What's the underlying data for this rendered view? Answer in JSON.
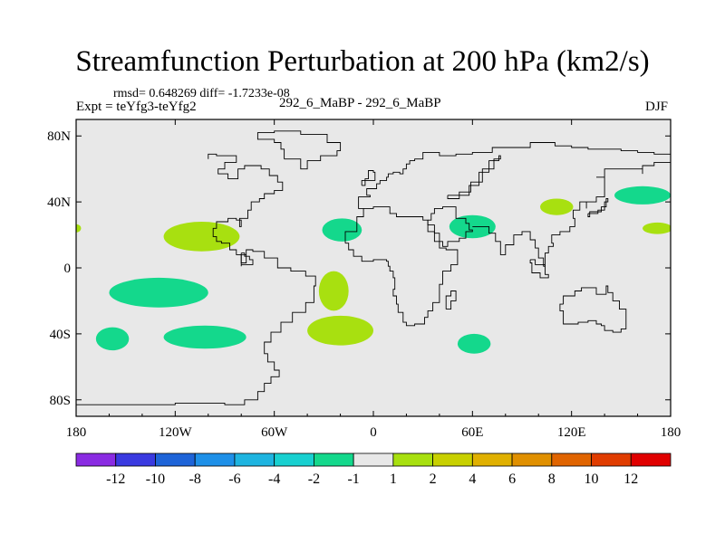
{
  "chart_data": {
    "type": "map",
    "title": "Streamfunction Perturbation at 200 hPa (km2/s)",
    "stats": "rmsd= 0.648269 diff= -1.7233e-08",
    "left_label": "Expt = teYfg3-teYfg2",
    "center_label": "292_6_MaBP - 292_6_MaBP",
    "right_label": "DJF",
    "xlim": [
      -180,
      180
    ],
    "ylim": [
      -90,
      90
    ],
    "x_ticks": [
      {
        "value": -180,
        "label": "180"
      },
      {
        "value": -120,
        "label": "120W"
      },
      {
        "value": -60,
        "label": "60W"
      },
      {
        "value": 0,
        "label": "0"
      },
      {
        "value": 60,
        "label": "60E"
      },
      {
        "value": 120,
        "label": "120E"
      },
      {
        "value": 180,
        "label": "180"
      }
    ],
    "y_ticks": [
      {
        "value": 80,
        "label": "80N"
      },
      {
        "value": 40,
        "label": "40N"
      },
      {
        "value": 0,
        "label": "0"
      },
      {
        "value": -40,
        "label": "40S"
      },
      {
        "value": -80,
        "label": "80S"
      }
    ],
    "colorbar": {
      "colors": [
        "#8a2be2",
        "#3a3ae0",
        "#1e64d8",
        "#1e90e8",
        "#1eb4e0",
        "#18d0d0",
        "#14d88c",
        "#e8e8e8",
        "#a8e010",
        "#c8d000",
        "#e0b000",
        "#e09000",
        "#e06400",
        "#e03c00",
        "#e00000"
      ],
      "labels": [
        "-12",
        "-10",
        "-8",
        "-6",
        "-4",
        "-2",
        "-1",
        "1",
        "2",
        "4",
        "6",
        "8",
        "10",
        "12"
      ]
    },
    "anomalies": [
      {
        "sign": "negative",
        "lon": -130,
        "lat": -15,
        "rx": 30,
        "ry": 9
      },
      {
        "sign": "negative",
        "lon": -158,
        "lat": -43,
        "rx": 10,
        "ry": 7
      },
      {
        "sign": "negative",
        "lon": -102,
        "lat": -42,
        "rx": 25,
        "ry": 7
      },
      {
        "sign": "negative",
        "lon": -19,
        "lat": 23,
        "rx": 12,
        "ry": 7
      },
      {
        "sign": "negative",
        "lon": 60,
        "lat": 25,
        "rx": 14,
        "ry": 7
      },
      {
        "sign": "negative",
        "lon": 61,
        "lat": -46,
        "rx": 10,
        "ry": 6
      },
      {
        "sign": "negative",
        "lon": 163,
        "lat": 44,
        "rx": 17,
        "ry": 5.5
      },
      {
        "sign": "positive",
        "lon": -104,
        "lat": 19,
        "rx": 23,
        "ry": 9
      },
      {
        "sign": "positive",
        "lon": -24,
        "lat": -14,
        "rx": 9,
        "ry": 12
      },
      {
        "sign": "positive",
        "lon": -20,
        "lat": -38,
        "rx": 20,
        "ry": 9
      },
      {
        "sign": "positive",
        "lon": 111,
        "lat": 37,
        "rx": 10,
        "ry": 5
      },
      {
        "sign": "positive",
        "lon": 172,
        "lat": 24,
        "rx": 9,
        "ry": 3.5
      },
      {
        "sign": "positive",
        "lon": -180,
        "lat": 24,
        "rx": 3,
        "ry": 2.5
      }
    ],
    "coastlines": [
      [
        [
          -180,
          -83
        ],
        [
          -158,
          -83
        ],
        [
          -120,
          -82
        ],
        [
          -90,
          -83
        ],
        [
          -78,
          -80
        ],
        [
          -70,
          -75
        ],
        [
          -66,
          -70
        ],
        [
          -62,
          -66
        ],
        [
          -57,
          -62
        ],
        [
          -60,
          -57
        ],
        [
          -64,
          -52
        ],
        [
          -66,
          -45
        ],
        [
          -62,
          -39
        ],
        [
          -56,
          -33
        ],
        [
          -49,
          -27
        ],
        [
          -41,
          -21
        ],
        [
          -36,
          -11
        ],
        [
          -35,
          -5
        ],
        [
          -41,
          -2
        ],
        [
          -50,
          0
        ],
        [
          -58,
          6
        ],
        [
          -66,
          10
        ],
        [
          -73,
          11
        ],
        [
          -77,
          8
        ],
        [
          -80,
          3
        ],
        [
          -77,
          8
        ],
        [
          -83,
          11
        ],
        [
          -87,
          15
        ],
        [
          -92,
          16
        ],
        [
          -95,
          19
        ],
        [
          -97,
          24
        ],
        [
          -95,
          28
        ],
        [
          -88,
          30
        ],
        [
          -83,
          29
        ],
        [
          -80,
          25
        ],
        [
          -81,
          30
        ],
        [
          -76,
          35
        ],
        [
          -74,
          40
        ],
        [
          -69,
          42
        ],
        [
          -66,
          45
        ],
        [
          -60,
          47
        ],
        [
          -55,
          52
        ],
        [
          -58,
          56
        ],
        [
          -63,
          60
        ],
        [
          -68,
          62
        ],
        [
          -78,
          60
        ],
        [
          -82,
          54
        ],
        [
          -88,
          57
        ],
        [
          -94,
          60
        ],
        [
          -90,
          64
        ],
        [
          -83,
          68
        ],
        [
          -95,
          69
        ],
        [
          -100,
          66
        ]
      ],
      [
        [
          -17,
          15
        ],
        [
          -17,
          22
        ],
        [
          -10,
          31
        ],
        [
          -6,
          36
        ],
        [
          -9,
          37
        ],
        [
          -9,
          43
        ],
        [
          -2,
          44
        ],
        [
          -4,
          48
        ],
        [
          2,
          51
        ],
        [
          4,
          53
        ],
        [
          8,
          55
        ],
        [
          9,
          57
        ],
        [
          12,
          58
        ],
        [
          16,
          57
        ],
        [
          18,
          60
        ],
        [
          20,
          63
        ],
        [
          22,
          65
        ],
        [
          25,
          66
        ],
        [
          30,
          70
        ],
        [
          40,
          68
        ],
        [
          50,
          69
        ],
        [
          60,
          70
        ],
        [
          72,
          73
        ],
        [
          80,
          73
        ],
        [
          95,
          76
        ],
        [
          110,
          74
        ],
        [
          120,
          73
        ],
        [
          130,
          72
        ],
        [
          140,
          72
        ],
        [
          150,
          71
        ],
        [
          160,
          70
        ],
        [
          170,
          69
        ],
        [
          180,
          68
        ]
      ],
      [
        [
          -17,
          15
        ],
        [
          -15,
          11
        ],
        [
          -12,
          7
        ],
        [
          -7,
          4
        ],
        [
          0,
          5
        ],
        [
          8,
          4
        ],
        [
          9,
          1
        ],
        [
          10,
          -2
        ],
        [
          12,
          -6
        ],
        [
          13,
          -13
        ],
        [
          12,
          -17
        ],
        [
          14,
          -22
        ],
        [
          15,
          -27
        ],
        [
          18,
          -33
        ],
        [
          20,
          -35
        ],
        [
          25,
          -34
        ],
        [
          31,
          -30
        ],
        [
          33,
          -26
        ],
        [
          36,
          -21
        ],
        [
          40,
          -15
        ],
        [
          40,
          -10
        ],
        [
          42,
          -2
        ],
        [
          47,
          2
        ],
        [
          51,
          11
        ],
        [
          44,
          12
        ],
        [
          40,
          16
        ],
        [
          37,
          22
        ],
        [
          33,
          29
        ],
        [
          30,
          31
        ],
        [
          25,
          31
        ],
        [
          20,
          31
        ],
        [
          14,
          33
        ],
        [
          10,
          37
        ],
        [
          0,
          36
        ],
        [
          -6,
          36
        ]
      ],
      [
        [
          45,
          44
        ],
        [
          52,
          46
        ],
        [
          59,
          52
        ],
        [
          66,
          60
        ],
        [
          73,
          66
        ],
        [
          77,
          68
        ],
        [
          76,
          65
        ],
        [
          70,
          58
        ],
        [
          64,
          50
        ],
        [
          58,
          44
        ],
        [
          52,
          42
        ],
        [
          45,
          44
        ]
      ],
      [
        [
          33,
          29
        ],
        [
          35,
          33
        ],
        [
          37,
          36
        ],
        [
          42,
          37
        ],
        [
          50,
          30
        ],
        [
          56,
          27
        ],
        [
          58,
          23
        ],
        [
          60,
          22
        ],
        [
          56,
          18
        ],
        [
          52,
          16
        ],
        [
          45,
          13
        ],
        [
          42,
          16
        ],
        [
          40,
          21
        ],
        [
          37,
          26
        ],
        [
          33,
          29
        ]
      ],
      [
        [
          60,
          25
        ],
        [
          66,
          25
        ],
        [
          70,
          21
        ],
        [
          74,
          16
        ],
        [
          77,
          8
        ],
        [
          80,
          14
        ],
        [
          85,
          20
        ],
        [
          90,
          22
        ],
        [
          95,
          17
        ],
        [
          98,
          12
        ],
        [
          100,
          6
        ],
        [
          103,
          1
        ],
        [
          104,
          9
        ],
        [
          106,
          13
        ],
        [
          109,
          15
        ],
        [
          108,
          20
        ],
        [
          113,
          22
        ],
        [
          119,
          25
        ],
        [
          122,
          30
        ],
        [
          121,
          35
        ],
        [
          125,
          40
        ],
        [
          129,
          36
        ],
        [
          129,
          40
        ],
        [
          135,
          43
        ],
        [
          140,
          48
        ],
        [
          140,
          55
        ],
        [
          135,
          55
        ],
        [
          140,
          60
        ],
        [
          150,
          60
        ],
        [
          160,
          60
        ],
        [
          163,
          57
        ],
        [
          163,
          62
        ],
        [
          170,
          64
        ],
        [
          180,
          65
        ]
      ],
      [
        [
          -7,
          50
        ],
        [
          -5,
          54
        ],
        [
          -3,
          59
        ],
        [
          0,
          58
        ],
        [
          1,
          53
        ],
        [
          -7,
          50
        ]
      ],
      [
        [
          -54,
          66
        ],
        [
          -44,
          60
        ],
        [
          -40,
          65
        ],
        [
          -32,
          68
        ],
        [
          -22,
          71
        ],
        [
          -20,
          76
        ],
        [
          -28,
          81
        ],
        [
          -44,
          83
        ],
        [
          -60,
          82
        ],
        [
          -70,
          78
        ],
        [
          -60,
          76
        ],
        [
          -56,
          72
        ],
        [
          -54,
          66
        ]
      ],
      [
        [
          95,
          5
        ],
        [
          98,
          2
        ],
        [
          104,
          -4
        ],
        [
          106,
          -6
        ],
        [
          101,
          -3
        ],
        [
          96,
          3
        ],
        [
          95,
          5
        ]
      ],
      [
        [
          115,
          -22
        ],
        [
          113,
          -26
        ],
        [
          115,
          -34
        ],
        [
          120,
          -34
        ],
        [
          124,
          -33
        ],
        [
          130,
          -32
        ],
        [
          135,
          -34
        ],
        [
          138,
          -35
        ],
        [
          140,
          -38
        ],
        [
          145,
          -39
        ],
        [
          150,
          -37
        ],
        [
          153,
          -31
        ],
        [
          153,
          -25
        ],
        [
          149,
          -20
        ],
        [
          145,
          -15
        ],
        [
          142,
          -11
        ],
        [
          141,
          -16
        ],
        [
          137,
          -16
        ],
        [
          135,
          -12
        ],
        [
          130,
          -12
        ],
        [
          126,
          -14
        ],
        [
          122,
          -17
        ],
        [
          115,
          -22
        ]
      ],
      [
        [
          44,
          -25
        ],
        [
          44,
          -17
        ],
        [
          47,
          -14
        ],
        [
          50,
          -14
        ],
        [
          50,
          -20
        ],
        [
          47,
          -25
        ],
        [
          44,
          -25
        ]
      ],
      [
        [
          130,
          33
        ],
        [
          136,
          35
        ],
        [
          140,
          40
        ],
        [
          142,
          42
        ],
        [
          141,
          37
        ],
        [
          138,
          34
        ],
        [
          131,
          31
        ],
        [
          130,
          33
        ]
      ],
      [
        [
          -80,
          9
        ],
        [
          -78,
          7
        ],
        [
          -75,
          5
        ],
        [
          -73,
          2
        ],
        [
          -80,
          1
        ],
        [
          -80,
          9
        ]
      ]
    ]
  }
}
